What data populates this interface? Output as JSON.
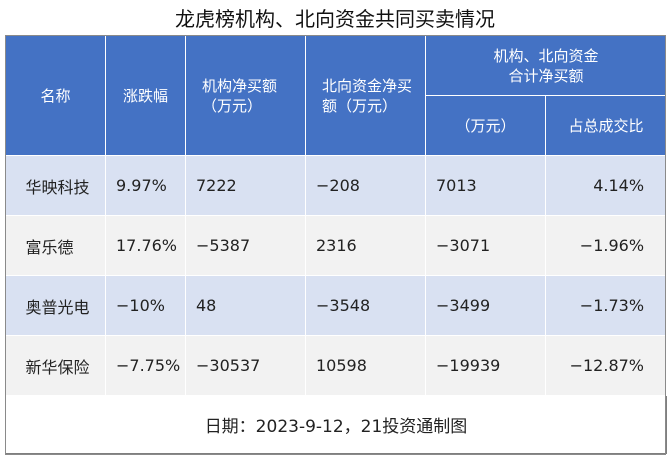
{
  "title": "龙虎榜机构、北向资金共同买卖情况",
  "header": {
    "name": "名称",
    "change": "涨跌幅",
    "inst_net_line1": "机构净买额",
    "inst_net_line2": "（万元）",
    "north_net_line1": "北向资金净买",
    "north_net_line2": "额（万元）",
    "combined_line1": "机构、北向资金",
    "combined_line2": "合计净买额",
    "combined_unit": "（万元）",
    "combined_ratio": "占总成交比"
  },
  "rows": [
    {
      "name": "华映科技",
      "change": "9.97%",
      "inst_net": "7222",
      "north_net": "−208",
      "combined": "7013",
      "ratio": "4.14%"
    },
    {
      "name": "富乐德",
      "change": "17.76%",
      "inst_net": "−5387",
      "north_net": "2316",
      "combined": "−3071",
      "ratio": "−1.96%"
    },
    {
      "name": "奥普光电",
      "change": "−10%",
      "inst_net": "48",
      "north_net": "−3548",
      "combined": "−3499",
      "ratio": "−1.73%"
    },
    {
      "name": "新华保险",
      "change": "−7.75%",
      "inst_net": "−30537",
      "north_net": "10598",
      "combined": "−19939",
      "ratio": "−12.87%"
    }
  ],
  "footer": "日期：2023-9-12，21投资通制图"
}
